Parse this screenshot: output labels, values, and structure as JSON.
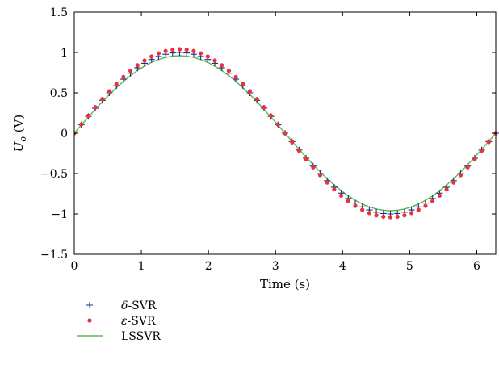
{
  "chart_data": {
    "type": "line",
    "xlabel": "Time (s)",
    "ylabel": "U",
    "ylabel_subscript": "o",
    "ylabel_unit": " (V)",
    "xlim": [
      0,
      6.2832
    ],
    "ylim": [
      -1.5,
      1.5
    ],
    "x_ticks": [
      0,
      1,
      2,
      3,
      4,
      5,
      6
    ],
    "y_ticks": [
      -1.5,
      -1,
      -0.5,
      0,
      0.5,
      1,
      1.5
    ],
    "x_tick_labels": [
      "0",
      "1",
      "2",
      "3",
      "4",
      "5",
      "6"
    ],
    "y_tick_labels": [
      "−1.5",
      "−1",
      "−0.5",
      "0",
      "0.5",
      "1",
      "1.5"
    ],
    "grid": false,
    "legend_position": "below",
    "x": [
      0,
      0.1047,
      0.2094,
      0.3142,
      0.4189,
      0.5236,
      0.6283,
      0.733,
      0.8378,
      0.9425,
      1.0472,
      1.1519,
      1.2566,
      1.3614,
      1.4661,
      1.5708,
      1.6755,
      1.7802,
      1.885,
      1.9897,
      2.0944,
      2.1991,
      2.3038,
      2.4086,
      2.5133,
      2.618,
      2.7227,
      2.8274,
      2.9322,
      3.0369,
      3.1416,
      3.2463,
      3.351,
      3.4558,
      3.5605,
      3.6652,
      3.7699,
      3.8746,
      3.9794,
      4.0841,
      4.1888,
      4.2935,
      4.3982,
      4.503,
      4.6077,
      4.7124,
      4.8171,
      4.9218,
      5.0265,
      5.1313,
      5.236,
      5.3407,
      5.4454,
      5.5501,
      5.6549,
      5.7596,
      5.8643,
      5.969,
      6.0737,
      6.1785,
      6.2832
    ],
    "series": [
      {
        "name_prefix": "δ",
        "name_suffix": "-SVR",
        "marker": "plus",
        "color": "#1f2f8f",
        "values": [
          0,
          0.1045,
          0.2079,
          0.309,
          0.4067,
          0.5,
          0.5878,
          0.6691,
          0.7431,
          0.809,
          0.866,
          0.9135,
          0.9511,
          0.9781,
          0.9945,
          1,
          0.9945,
          0.9781,
          0.9511,
          0.9135,
          0.866,
          0.809,
          0.7431,
          0.6691,
          0.5878,
          0.5,
          0.4067,
          0.309,
          0.2079,
          0.1045,
          0,
          -0.1045,
          -0.2079,
          -0.309,
          -0.4067,
          -0.5,
          -0.5878,
          -0.6691,
          -0.7431,
          -0.809,
          -0.866,
          -0.9135,
          -0.9511,
          -0.9781,
          -0.9945,
          -1,
          -0.9945,
          -0.9781,
          -0.9511,
          -0.9135,
          -0.866,
          -0.809,
          -0.7431,
          -0.6691,
          -0.5878,
          -0.5,
          -0.4067,
          -0.309,
          -0.2079,
          -0.1045,
          0
        ]
      },
      {
        "name_prefix": "ε",
        "name_suffix": "-SVR",
        "marker": "dot",
        "color": "#e8333c",
        "values": [
          0,
          0.1087,
          0.2162,
          0.3214,
          0.423,
          0.52,
          0.6113,
          0.6959,
          0.7728,
          0.8414,
          0.9006,
          0.95,
          0.9891,
          1.0172,
          1.0343,
          1.04,
          1.0343,
          1.0172,
          0.9891,
          0.95,
          0.9006,
          0.8414,
          0.7728,
          0.6959,
          0.6113,
          0.52,
          0.423,
          0.3214,
          0.2162,
          0.1087,
          0,
          -0.1087,
          -0.2162,
          -0.3214,
          -0.423,
          -0.52,
          -0.6113,
          -0.6959,
          -0.7728,
          -0.8414,
          -0.9006,
          -0.95,
          -0.9891,
          -1.0172,
          -1.0343,
          -1.04,
          -1.0343,
          -1.0172,
          -0.9891,
          -0.95,
          -0.9006,
          -0.8414,
          -0.7728,
          -0.6959,
          -0.6113,
          -0.52,
          -0.423,
          -0.3214,
          -0.2162,
          -0.1087,
          0
        ]
      },
      {
        "name_prefix": "",
        "name_suffix": "LSSVR",
        "marker": "line",
        "color": "#5db848",
        "values": [
          0,
          0.1003,
          0.1996,
          0.2966,
          0.3904,
          0.48,
          0.5643,
          0.6423,
          0.7134,
          0.7766,
          0.8314,
          0.877,
          0.9131,
          0.939,
          0.9547,
          0.96,
          0.9547,
          0.939,
          0.9131,
          0.877,
          0.8314,
          0.7766,
          0.7134,
          0.6423,
          0.5643,
          0.48,
          0.3904,
          0.2966,
          0.1996,
          0.1003,
          0,
          -0.1003,
          -0.1996,
          -0.2966,
          -0.3904,
          -0.48,
          -0.5643,
          -0.6423,
          -0.7134,
          -0.7766,
          -0.8314,
          -0.877,
          -0.9131,
          -0.939,
          -0.9547,
          -0.96,
          -0.9547,
          -0.939,
          -0.9131,
          -0.877,
          -0.8314,
          -0.7766,
          -0.7134,
          -0.6423,
          -0.5643,
          -0.48,
          -0.3904,
          -0.2966,
          -0.1996,
          -0.1003,
          0
        ]
      }
    ]
  }
}
